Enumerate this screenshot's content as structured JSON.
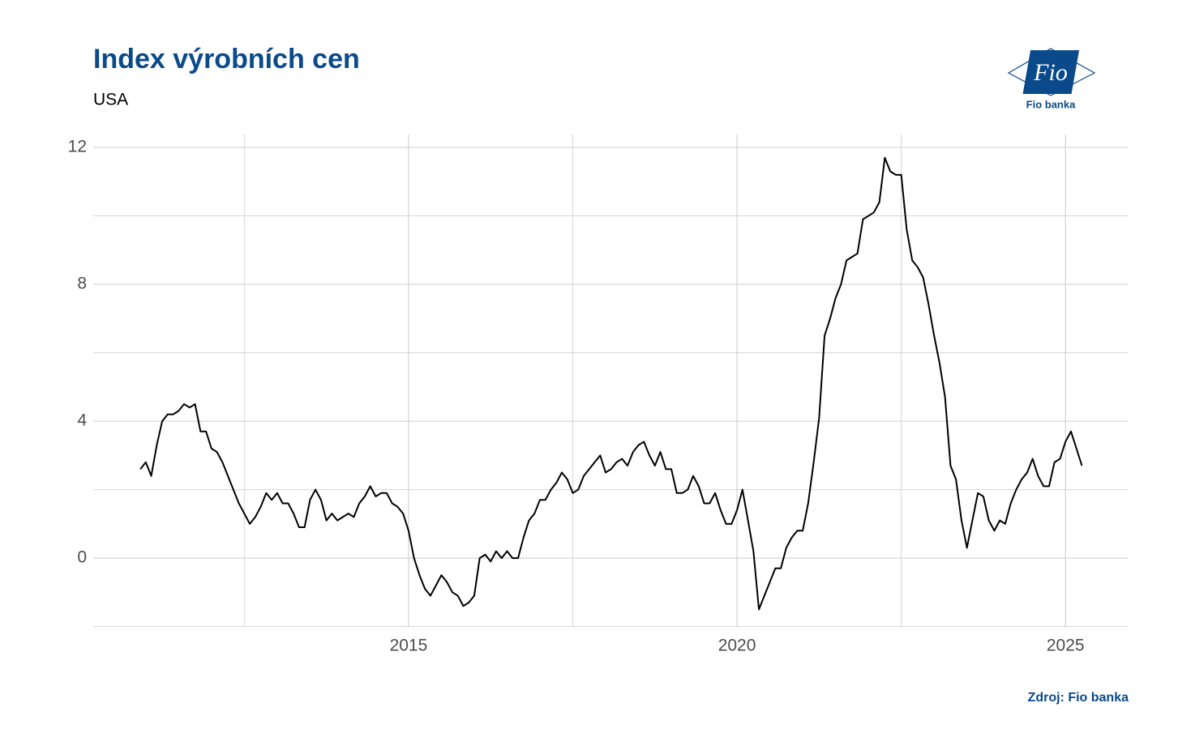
{
  "chart_data": {
    "type": "line",
    "title": "Index výrobních cen",
    "subtitle": "USA",
    "source": "Zdroj: Fio banka",
    "logo": {
      "text": "Fio",
      "caption": "Fio banka"
    },
    "xlim": [
      2010.2,
      2025.96
    ],
    "xticks": [
      2015,
      2020,
      2025
    ],
    "xminor_ticks": [
      2012.5,
      2017.5,
      2022.5
    ],
    "ylim": [
      -2.01,
      12.38
    ],
    "yticks": [
      0,
      4,
      8,
      12
    ],
    "yminor_ticks": [
      -2,
      2,
      6,
      10
    ],
    "grid": true,
    "series": [
      {
        "name": "USA",
        "color": "#000000",
        "x": [
          2010.917,
          2011,
          2011.083,
          2011.167,
          2011.25,
          2011.333,
          2011.417,
          2011.5,
          2011.583,
          2011.667,
          2011.75,
          2011.833,
          2011.917,
          2012,
          2012.083,
          2012.167,
          2012.25,
          2012.333,
          2012.417,
          2012.5,
          2012.583,
          2012.667,
          2012.75,
          2012.833,
          2012.917,
          2013,
          2013.083,
          2013.167,
          2013.25,
          2013.333,
          2013.417,
          2013.5,
          2013.583,
          2013.667,
          2013.75,
          2013.833,
          2013.917,
          2014,
          2014.083,
          2014.167,
          2014.25,
          2014.333,
          2014.417,
          2014.5,
          2014.583,
          2014.667,
          2014.75,
          2014.833,
          2014.917,
          2015,
          2015.083,
          2015.167,
          2015.25,
          2015.333,
          2015.417,
          2015.5,
          2015.583,
          2015.667,
          2015.75,
          2015.833,
          2015.917,
          2016,
          2016.083,
          2016.167,
          2016.25,
          2016.333,
          2016.417,
          2016.5,
          2016.583,
          2016.667,
          2016.75,
          2016.833,
          2016.917,
          2017,
          2017.083,
          2017.167,
          2017.25,
          2017.333,
          2017.417,
          2017.5,
          2017.583,
          2017.667,
          2017.75,
          2017.833,
          2017.917,
          2018,
          2018.083,
          2018.167,
          2018.25,
          2018.333,
          2018.417,
          2018.5,
          2018.583,
          2018.667,
          2018.75,
          2018.833,
          2018.917,
          2019,
          2019.083,
          2019.167,
          2019.25,
          2019.333,
          2019.417,
          2019.5,
          2019.583,
          2019.667,
          2019.75,
          2019.833,
          2019.917,
          2020,
          2020.083,
          2020.167,
          2020.25,
          2020.333,
          2020.417,
          2020.5,
          2020.583,
          2020.667,
          2020.75,
          2020.833,
          2020.917,
          2021,
          2021.083,
          2021.167,
          2021.25,
          2021.333,
          2021.417,
          2021.5,
          2021.583,
          2021.667,
          2021.75,
          2021.833,
          2021.917,
          2022,
          2022.083,
          2022.167,
          2022.25,
          2022.333,
          2022.417,
          2022.5,
          2022.583,
          2022.667,
          2022.75,
          2022.833,
          2022.917,
          2023,
          2023.083,
          2023.167,
          2023.25,
          2023.333,
          2023.417,
          2023.5,
          2023.583,
          2023.667,
          2023.75,
          2023.833,
          2023.917,
          2024,
          2024.083,
          2024.167,
          2024.25,
          2024.333,
          2024.417,
          2024.5,
          2024.583,
          2024.667,
          2024.75,
          2024.833,
          2024.917,
          2025,
          2025.083,
          2025.167,
          2025.25
        ],
        "values": [
          2.6,
          2.8,
          2.4,
          3.3,
          4.0,
          4.2,
          4.2,
          4.3,
          4.5,
          4.4,
          4.5,
          3.7,
          3.7,
          3.2,
          3.1,
          2.8,
          2.4,
          2.0,
          1.6,
          1.3,
          1.0,
          1.2,
          1.5,
          1.9,
          1.7,
          1.9,
          1.6,
          1.6,
          1.3,
          0.9,
          0.9,
          1.7,
          2.0,
          1.7,
          1.1,
          1.3,
          1.1,
          1.2,
          1.3,
          1.2,
          1.6,
          1.8,
          2.1,
          1.8,
          1.9,
          1.9,
          1.6,
          1.5,
          1.3,
          0.8,
          0.0,
          -0.5,
          -0.9,
          -1.1,
          -0.8,
          -0.5,
          -0.7,
          -1.0,
          -1.1,
          -1.4,
          -1.3,
          -1.1,
          0.0,
          0.1,
          -0.1,
          0.2,
          0.0,
          0.2,
          0.0,
          0.0,
          0.6,
          1.1,
          1.3,
          1.7,
          1.7,
          2.0,
          2.2,
          2.5,
          2.3,
          1.9,
          2.0,
          2.4,
          2.6,
          2.8,
          3.0,
          2.5,
          2.6,
          2.8,
          2.9,
          2.7,
          3.1,
          3.3,
          3.4,
          3.0,
          2.7,
          3.1,
          2.6,
          2.6,
          1.9,
          1.9,
          2.0,
          2.4,
          2.1,
          1.6,
          1.6,
          1.9,
          1.4,
          1.0,
          1.0,
          1.4,
          2.0,
          1.1,
          0.2,
          -1.5,
          -1.1,
          -0.7,
          -0.3,
          -0.3,
          0.3,
          0.6,
          0.8,
          0.8,
          1.6,
          2.8,
          4.1,
          6.5,
          7.0,
          7.6,
          8.0,
          8.7,
          8.8,
          8.9,
          9.9,
          10.0,
          10.1,
          10.4,
          11.7,
          11.3,
          11.2,
          11.2,
          9.6,
          8.7,
          8.5,
          8.2,
          7.4,
          6.5,
          5.7,
          4.7,
          2.7,
          2.3,
          1.1,
          0.3,
          1.1,
          1.9,
          1.8,
          1.1,
          0.8,
          1.1,
          1.0,
          1.6,
          2.0,
          2.3,
          2.5,
          2.9,
          2.4,
          2.1,
          2.1,
          2.8,
          2.9,
          3.4,
          3.7,
          3.2,
          2.7
        ]
      }
    ]
  }
}
